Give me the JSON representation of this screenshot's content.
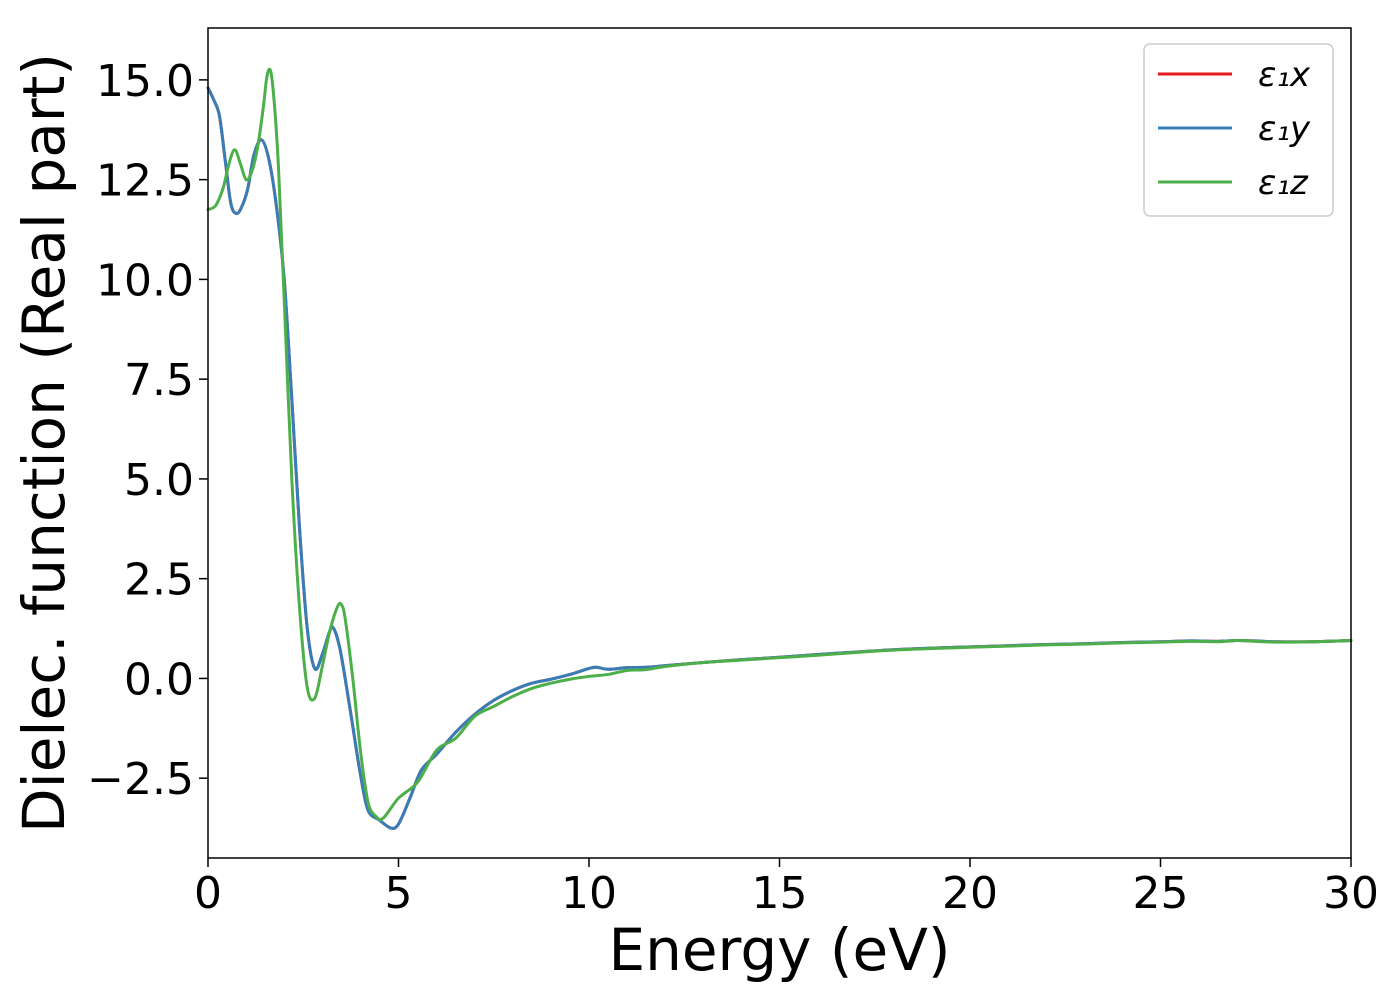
{
  "chart_data": {
    "type": "line",
    "title": "",
    "xlabel": "Energy (eV)",
    "ylabel": "Dielec. function (Real part)",
    "xlim": [
      0,
      30
    ],
    "ylim": [
      -4.5,
      16.3
    ],
    "xticks": [
      0,
      5,
      10,
      15,
      20,
      25,
      30
    ],
    "xtick_labels": [
      "0",
      "5",
      "10",
      "15",
      "20",
      "25",
      "30"
    ],
    "yticks": [
      -2.5,
      0,
      2.5,
      5,
      7.5,
      10,
      12.5,
      15
    ],
    "ytick_labels": [
      "−2.5",
      "0.0",
      "2.5",
      "5.0",
      "7.5",
      "10.0",
      "12.5",
      "15.0"
    ],
    "grid": false,
    "legend_position": "top-right",
    "series": [
      {
        "name": "ε₁x",
        "color": "#e41a1c",
        "x": [
          0,
          0.15,
          0.3,
          0.45,
          0.6,
          0.75,
          0.9,
          1.05,
          1.2,
          1.4,
          1.6,
          1.8,
          2.0,
          2.2,
          2.4,
          2.6,
          2.8,
          3.0,
          3.2,
          3.3,
          3.45,
          3.6,
          3.8,
          4.0,
          4.2,
          4.5,
          4.8,
          5.0,
          5.3,
          5.6,
          6.0,
          6.5,
          7.0,
          7.5,
          8.0,
          8.5,
          9.0,
          9.5,
          10.0,
          10.2,
          10.5,
          11.0,
          11.5,
          12.0,
          13.0,
          14.0,
          15.0,
          16.0,
          17.0,
          18.0,
          19.0,
          20.0,
          21.0,
          22.0,
          23.0,
          24.0,
          25.0,
          25.8,
          26.5,
          27.0,
          27.5,
          28.0,
          29.0,
          30.0
        ],
        "y": [
          14.8,
          14.5,
          14.1,
          13.0,
          11.9,
          11.65,
          11.85,
          12.3,
          13.1,
          13.5,
          13.0,
          11.8,
          10.0,
          7.0,
          3.8,
          1.3,
          0.25,
          0.6,
          1.2,
          1.25,
          0.8,
          0.0,
          -1.2,
          -2.4,
          -3.3,
          -3.55,
          -3.75,
          -3.65,
          -3.0,
          -2.3,
          -1.9,
          -1.35,
          -0.9,
          -0.55,
          -0.3,
          -0.12,
          -0.02,
          0.1,
          0.25,
          0.28,
          0.23,
          0.27,
          0.28,
          0.32,
          0.4,
          0.47,
          0.53,
          0.6,
          0.66,
          0.72,
          0.76,
          0.79,
          0.82,
          0.85,
          0.87,
          0.9,
          0.92,
          0.94,
          0.93,
          0.95,
          0.94,
          0.92,
          0.92,
          0.95
        ]
      },
      {
        "name": "ε₁y",
        "color": "#377eb8",
        "x": [
          0,
          0.15,
          0.3,
          0.45,
          0.6,
          0.75,
          0.9,
          1.05,
          1.2,
          1.4,
          1.6,
          1.8,
          2.0,
          2.2,
          2.4,
          2.6,
          2.8,
          3.0,
          3.2,
          3.3,
          3.45,
          3.6,
          3.8,
          4.0,
          4.2,
          4.5,
          4.8,
          5.0,
          5.3,
          5.6,
          6.0,
          6.5,
          7.0,
          7.5,
          8.0,
          8.5,
          9.0,
          9.5,
          10.0,
          10.2,
          10.5,
          11.0,
          11.5,
          12.0,
          13.0,
          14.0,
          15.0,
          16.0,
          17.0,
          18.0,
          19.0,
          20.0,
          21.0,
          22.0,
          23.0,
          24.0,
          25.0,
          25.8,
          26.5,
          27.0,
          27.5,
          28.0,
          29.0,
          30.0
        ],
        "y": [
          14.8,
          14.5,
          14.1,
          13.0,
          11.9,
          11.65,
          11.85,
          12.3,
          13.1,
          13.5,
          13.0,
          11.8,
          10.0,
          7.0,
          3.8,
          1.3,
          0.25,
          0.6,
          1.2,
          1.25,
          0.8,
          0.0,
          -1.2,
          -2.4,
          -3.3,
          -3.55,
          -3.75,
          -3.65,
          -3.0,
          -2.3,
          -1.9,
          -1.35,
          -0.9,
          -0.55,
          -0.3,
          -0.12,
          -0.02,
          0.1,
          0.25,
          0.28,
          0.23,
          0.27,
          0.28,
          0.32,
          0.4,
          0.47,
          0.53,
          0.6,
          0.66,
          0.72,
          0.76,
          0.79,
          0.82,
          0.85,
          0.87,
          0.9,
          0.92,
          0.94,
          0.93,
          0.95,
          0.94,
          0.92,
          0.92,
          0.95
        ]
      },
      {
        "name": "ε₁z",
        "color": "#4daf4a",
        "x": [
          0,
          0.2,
          0.4,
          0.55,
          0.7,
          0.85,
          1.0,
          1.15,
          1.3,
          1.45,
          1.55,
          1.65,
          1.75,
          1.85,
          2.0,
          2.2,
          2.4,
          2.6,
          2.8,
          3.0,
          3.2,
          3.4,
          3.5,
          3.6,
          3.8,
          4.0,
          4.2,
          4.4,
          4.6,
          5.0,
          5.5,
          6.0,
          6.5,
          7.0,
          7.5,
          8.0,
          8.5,
          9.0,
          9.5,
          10.0,
          10.5,
          11.0,
          11.5,
          12.0,
          13.0,
          14.0,
          15.0,
          16.0,
          17.0,
          18.0,
          19.0,
          20.0,
          21.0,
          22.0,
          23.0,
          24.0,
          25.0,
          25.8,
          26.5,
          27.0,
          27.5,
          28.0,
          29.0,
          30.0
        ],
        "y": [
          11.75,
          11.85,
          12.3,
          12.9,
          13.25,
          12.9,
          12.5,
          12.7,
          13.3,
          14.3,
          15.1,
          15.2,
          14.3,
          12.8,
          9.5,
          5.0,
          1.8,
          -0.2,
          -0.5,
          0.3,
          1.2,
          1.8,
          1.85,
          1.5,
          0.0,
          -1.8,
          -3.1,
          -3.45,
          -3.5,
          -3.0,
          -2.6,
          -1.8,
          -1.5,
          -0.95,
          -0.7,
          -0.45,
          -0.25,
          -0.12,
          -0.02,
          0.05,
          0.1,
          0.2,
          0.22,
          0.3,
          0.4,
          0.46,
          0.52,
          0.58,
          0.65,
          0.71,
          0.75,
          0.78,
          0.81,
          0.84,
          0.86,
          0.89,
          0.91,
          0.93,
          0.92,
          0.95,
          0.93,
          0.91,
          0.92,
          0.95
        ]
      }
    ]
  }
}
